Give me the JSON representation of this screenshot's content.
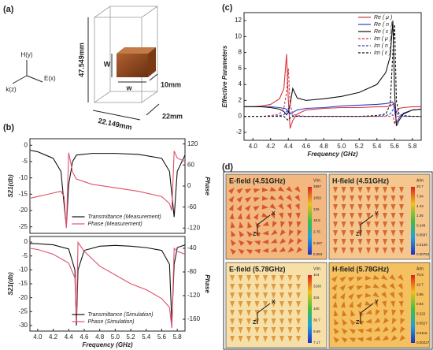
{
  "panel_labels": [
    "(a)",
    "(b)",
    "(c)",
    "(d)"
  ],
  "unit_cell": {
    "height": "47.549mm",
    "cube_height": "W",
    "cube_width": "w",
    "cube_depth": "10mm",
    "width": "22.149mm",
    "depth": "22mm",
    "h_axis": "H(y)",
    "k_axis": "k(z)",
    "e_axis": "E(x)"
  },
  "chart_data": [
    {
      "type": "line",
      "ylabel": "S21(db)",
      "y2label": "Phase",
      "x": [
        3.9,
        4.0,
        4.1,
        4.2,
        4.3,
        4.34,
        4.37,
        4.4,
        4.45,
        4.5,
        4.7,
        5.0,
        5.3,
        5.6,
        5.7,
        5.73,
        5.76,
        5.8,
        5.9
      ],
      "xlim": [
        3.9,
        5.9
      ],
      "ylim": [
        -27,
        2
      ],
      "yticks": [
        0,
        -5,
        -10,
        -15,
        -20,
        -25
      ],
      "y2lim": [
        -135,
        135
      ],
      "y2ticks": [
        120,
        60,
        0,
        -60,
        -120
      ],
      "legend": "lower center",
      "series": [
        {
          "name": "Transmittance (Measurement)",
          "color": "#111111",
          "values": [
            -1.5,
            -2,
            -3,
            -4,
            -8,
            -18,
            -25,
            -12,
            -5,
            -3,
            -2.5,
            -2.5,
            -2.8,
            -4,
            -8,
            -15,
            -22,
            -8,
            -3
          ]
        },
        {
          "name": "Phase (Measurement)",
          "color": "#e0506a",
          "axis": "y2",
          "values": [
            -35,
            -30,
            -25,
            -20,
            -15,
            -30,
            -120,
            95,
            40,
            20,
            5,
            -5,
            -15,
            -30,
            -50,
            -70,
            100,
            80,
            70
          ]
        }
      ]
    },
    {
      "type": "line",
      "xlabel": "Frequency (GHz)",
      "ylabel": "S21(db)",
      "y2label": "Phase",
      "x": [
        3.9,
        4.0,
        4.2,
        4.4,
        4.48,
        4.5,
        4.52,
        4.6,
        4.8,
        5.0,
        5.2,
        5.4,
        5.6,
        5.7,
        5.73,
        5.76,
        5.8,
        5.9
      ],
      "xlim": [
        3.9,
        5.9
      ],
      "xticks": [
        {
          "value": 4,
          "label": "4.0"
        },
        4.2,
        4.4,
        4.6,
        4.8,
        {
          "value": 5,
          "label": "5.0"
        },
        5.2,
        5.4,
        5.6,
        5.8
      ],
      "ylim": [
        -32,
        2
      ],
      "yticks": [
        0,
        -5,
        -10,
        -15,
        -20,
        -25,
        -30
      ],
      "y2lim": [
        -180,
        -20
      ],
      "y2ticks": [
        -40,
        -80,
        -120,
        -160
      ],
      "legend": "lower center",
      "series": [
        {
          "name": "Transmittance (Simulation)",
          "color": "#111111",
          "values": [
            -0.5,
            -0.6,
            -1,
            -2.5,
            -10,
            -30,
            -10,
            -3,
            -1.5,
            -1.2,
            -1.5,
            -2,
            -3,
            -8,
            -29,
            -8,
            -2,
            -1
          ]
        },
        {
          "name": "Phase (Simulation)",
          "color": "#e0506a",
          "axis": "y2",
          "values": [
            -40,
            -42,
            -50,
            -65,
            -90,
            -165,
            -30,
            -45,
            -70,
            -85,
            -100,
            -110,
            -125,
            -140,
            -175,
            -40,
            -45,
            -50
          ]
        }
      ]
    },
    {
      "type": "line",
      "xlabel": "Frequency (GHz)",
      "ylabel": "Effective Parameters",
      "x": [
        3.9,
        4.0,
        4.1,
        4.2,
        4.3,
        4.35,
        4.38,
        4.4,
        4.42,
        4.45,
        4.5,
        4.6,
        4.8,
        5.0,
        5.2,
        5.4,
        5.5,
        5.55,
        5.58,
        5.6,
        5.62,
        5.65,
        5.7,
        5.8,
        5.9
      ],
      "xlim": [
        3.9,
        5.9
      ],
      "xticks": [
        {
          "value": 4,
          "label": "4.0"
        },
        4.2,
        4.4,
        4.6,
        4.8,
        {
          "value": 5,
          "label": "5.0"
        },
        5.2,
        5.4,
        5.6,
        5.8
      ],
      "ylim": [
        -3,
        13
      ],
      "yticks": [
        -2,
        0,
        2,
        4,
        6,
        8,
        10,
        12
      ],
      "legend": "upper right",
      "series": [
        {
          "name": "Re ( μ )",
          "color": "#d9333f",
          "values": [
            1.2,
            1.2,
            1.3,
            1.5,
            2.2,
            3.5,
            7.8,
            2.0,
            -1.5,
            -0.5,
            0.3,
            0.8,
            1.0,
            1.1,
            1.1,
            1.2,
            1.2,
            1.3,
            1.5,
            1.6,
            0.5,
            1.0,
            1.1,
            1.2,
            1.2
          ]
        },
        {
          "name": "Re ( n )",
          "color": "#2b3fc7",
          "values": [
            1.2,
            1.2,
            1.2,
            1.2,
            1.1,
            1.0,
            0.9,
            0.5,
            0.3,
            0.5,
            0.8,
            1.0,
            1.1,
            1.3,
            1.4,
            1.5,
            1.6,
            1.7,
            1.8,
            0.8,
            -0.8,
            -0.2,
            0.4,
            0.8,
            0.9
          ]
        },
        {
          "name": "Re ( ε )",
          "color": "#111111",
          "values": [
            1.2,
            1.2,
            1.2,
            1.1,
            0.9,
            0.6,
            0.2,
            0.5,
            1.5,
            3.5,
            2.3,
            2.0,
            2.2,
            2.5,
            3.0,
            4.0,
            5.5,
            7.5,
            12.0,
            3.0,
            -1.2,
            -0.5,
            0.3,
            0.8,
            0.9
          ]
        },
        {
          "name": "Im ( μ )",
          "color": "#d9333f",
          "dash": true,
          "values": [
            0,
            0,
            0,
            0.1,
            0.3,
            1.0,
            3.0,
            6.0,
            1.5,
            0.3,
            0.1,
            0,
            0,
            0,
            0,
            0,
            0,
            0,
            0.2,
            -1.0,
            0,
            0,
            0,
            0,
            0
          ]
        },
        {
          "name": "Im ( n )",
          "color": "#2b3fc7",
          "dash": true,
          "values": [
            0,
            0,
            0,
            0,
            0.1,
            0.2,
            0.6,
            1.0,
            0.4,
            0.1,
            0,
            0,
            0,
            0,
            0,
            0,
            0.1,
            0.3,
            0.8,
            1.2,
            0.5,
            0.1,
            0,
            0,
            0
          ]
        },
        {
          "name": "Im ( ε )",
          "color": "#111111",
          "dash": true,
          "values": [
            0,
            0,
            0,
            0,
            0,
            0,
            -0.3,
            -0.5,
            -0.2,
            0,
            0,
            0,
            0,
            0,
            0,
            0.1,
            0.3,
            1.5,
            8.0,
            11.5,
            2.0,
            0.3,
            0.1,
            0,
            0
          ]
        }
      ]
    }
  ],
  "field_tiles": [
    {
      "title": "E-field (4.51GHz)",
      "unit": "V/m",
      "scale": [
        "3997",
        "1092",
        "126",
        "18.5",
        "2.76",
        "0.457",
        "0.063"
      ],
      "axes": [
        "X",
        "Z"
      ]
    },
    {
      "title": "H-field (4.51GHz)",
      "unit": "A/m",
      "scale": [
        "20.7",
        "7.04",
        "4.43",
        "1.05",
        "0.248",
        "0.0587",
        "0.0139",
        "0.00753"
      ],
      "axes": [
        "Y",
        "Z"
      ]
    },
    {
      "title": "E-field (5.78GHz)",
      "unit": "V/m",
      "scale": [
        "1e4",
        "3160",
        "316",
        "100",
        "30.7",
        "9.69",
        "7.17"
      ],
      "axes": [
        "X",
        "Z"
      ]
    },
    {
      "title": "H-field (5.78GHz)",
      "unit": "A/m",
      "scale": [
        "70.5",
        "16.7",
        "3.96",
        "0.94",
        "0.222",
        "0.0527",
        "0.0118",
        "0.00227"
      ],
      "axes": [
        "Y",
        "Z"
      ]
    }
  ]
}
